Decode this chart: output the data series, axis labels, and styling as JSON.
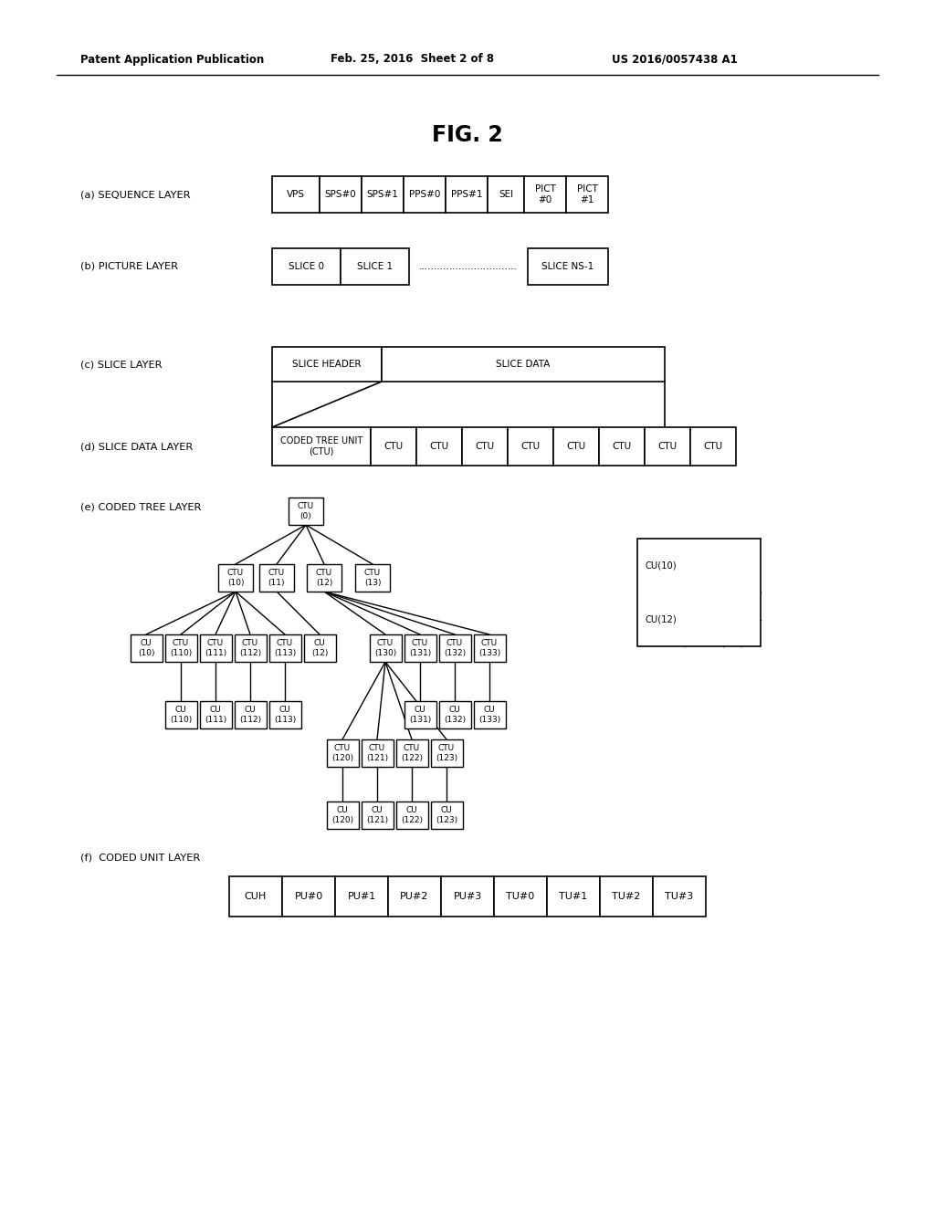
{
  "title": "FIG. 2",
  "header_left": "Patent Application Publication",
  "header_mid": "Feb. 25, 2016  Sheet 2 of 8",
  "header_right": "US 2016/0057438 A1",
  "bg_color": "#ffffff",
  "text_color": "#000000",
  "fig_width": 10.24,
  "fig_height": 13.2,
  "dpi": 100
}
